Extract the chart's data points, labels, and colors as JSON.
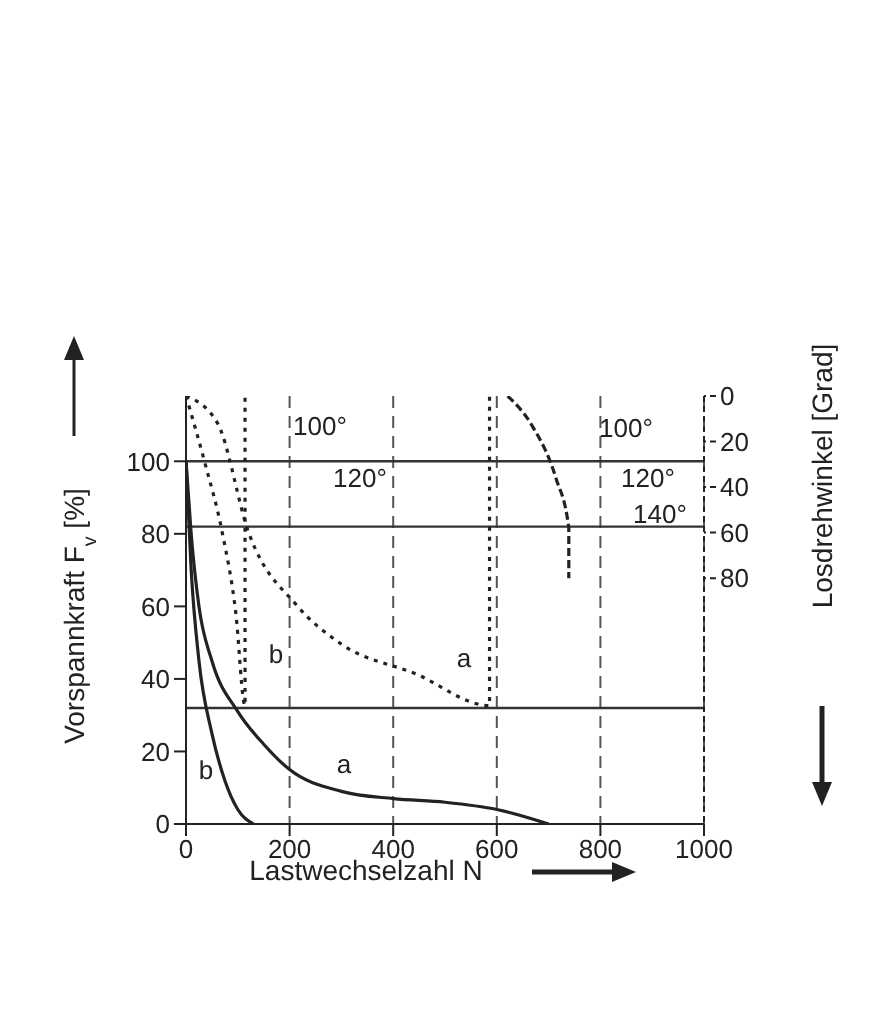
{
  "chart_data": {
    "type": "line",
    "xlabel": "Lastwechselzahl N",
    "ylabel": "Vorspannkraft F$_{v}$  [%]",
    "y2label": "Losdrehwinkel     [Grad]",
    "xlim": [
      0,
      1000
    ],
    "xticks": [
      0,
      200,
      400,
      600,
      800,
      1000
    ],
    "ylim": [
      0,
      118
    ],
    "yticks": [
      0,
      20,
      40,
      60,
      80,
      100
    ],
    "y2lim": [
      188,
      0
    ],
    "y2ticks": [
      0,
      20,
      40,
      60,
      80
    ],
    "grid": "x",
    "legend": false,
    "marker": "none",
    "series": [
      {
        "color": "#222222",
        "line_style": "solid",
        "x": [
          0,
          10,
          25,
          50,
          100,
          150,
          200,
          300,
          400,
          500,
          600,
          700
        ],
        "values": [
          100,
          80,
          60,
          45,
          31,
          22,
          15,
          9,
          7,
          6,
          4,
          0
        ]
      },
      {
        "color": "#222222",
        "line_style": "solid",
        "x": [
          0,
          10,
          25,
          50,
          75,
          100,
          130
        ],
        "values": [
          100,
          70,
          45,
          25,
          12,
          4,
          0
        ]
      },
      {
        "color": "#222222",
        "line_style": "dotted",
        "axis": "y2",
        "x": [
          0,
          61,
          121,
          214,
          300,
          443,
          586,
          586
        ],
        "values": [
          0,
          12,
          60,
          92,
          109,
          122,
          136,
          0
        ]
      },
      {
        "color": "#222222",
        "line_style": "dotted",
        "axis": "y2",
        "x": [
          0,
          36,
          70,
          96,
          114,
          114
        ],
        "values": [
          0,
          29,
          60,
          95,
          136,
          0
        ]
      },
      {
        "color": "#222222",
        "line_style": "dashed",
        "axis": "y2",
        "x": [
          621,
          668,
          714,
          739,
          739
        ],
        "values": [
          0,
          13,
          36,
          58,
          80
        ]
      }
    ],
    "ref_lines": [
      {
        "axis": "y",
        "value": 100,
        "color": "#333333"
      },
      {
        "axis": "y",
        "value": 82,
        "color": "#333333"
      },
      {
        "axis": "y",
        "value": 32,
        "color": "#333333"
      }
    ],
    "annotations": [
      "100°",
      "120°",
      "100°",
      "120°",
      "140°",
      "a",
      "b",
      "a",
      "b"
    ]
  }
}
